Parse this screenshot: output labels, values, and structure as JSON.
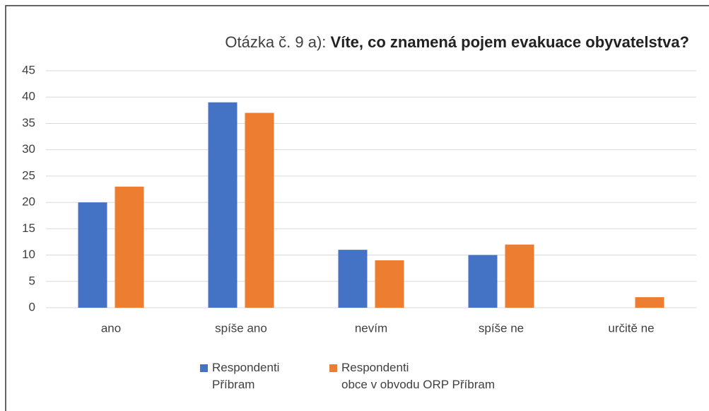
{
  "chart_data": {
    "type": "bar",
    "title_parts": [
      "Otázka č. 9 a):",
      "Víte, co znamená pojem evakuace obyvatelstva?"
    ],
    "categories": [
      "ano",
      "spíše ano",
      "nevím",
      "spíše ne",
      "určitě ne"
    ],
    "series": [
      {
        "name": "Respondenti Příbram",
        "color": "#4472c4",
        "values": [
          20,
          39,
          11,
          10,
          0
        ]
      },
      {
        "name": "Respondenti obce v obvodu ORP Příbram",
        "color": "#ed7d31",
        "values": [
          23,
          37,
          9,
          12,
          2
        ]
      }
    ],
    "ylim": [
      0,
      45
    ],
    "yticks": [
      0,
      5,
      10,
      15,
      20,
      25,
      30,
      35,
      40,
      45
    ],
    "grid": true,
    "legend": "bottom"
  }
}
